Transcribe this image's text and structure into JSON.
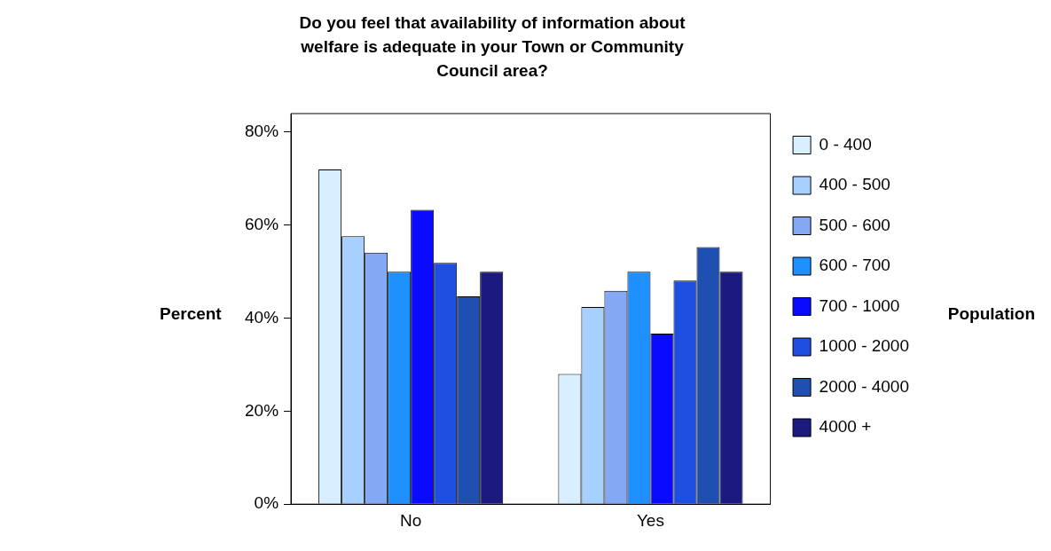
{
  "chart_data": {
    "type": "bar",
    "title": "Do you feel that availability of information about welfare is adequate in your Town or Community Council area?",
    "ylabel": "Percent",
    "legend_title": "Population",
    "categories": [
      "No",
      "Yes"
    ],
    "series": [
      {
        "name": "0 - 400",
        "color": "#d9efff",
        "values": [
          72,
          28
        ]
      },
      {
        "name": "400 - 500",
        "color": "#a8d0ff",
        "values": [
          57.6,
          42.4
        ]
      },
      {
        "name": "500 - 600",
        "color": "#85a8f5",
        "values": [
          54.1,
          45.9
        ]
      },
      {
        "name": "600 - 700",
        "color": "#1e90ff",
        "values": [
          50,
          50
        ]
      },
      {
        "name": "700 - 1000",
        "color": "#0a0aff",
        "values": [
          63.3,
          36.7
        ]
      },
      {
        "name": "1000 - 2000",
        "color": "#1f4fe0",
        "values": [
          51.9,
          48.1
        ]
      },
      {
        "name": "2000 - 4000",
        "color": "#1f4fb0",
        "values": [
          44.7,
          55.3
        ]
      },
      {
        "name": "4000 +",
        "color": "#1a1a80",
        "values": [
          50,
          50
        ]
      }
    ],
    "ylim": [
      0,
      84
    ],
    "yticks": [
      {
        "value": 0,
        "label": "0%"
      },
      {
        "value": 20,
        "label": "20%"
      },
      {
        "value": 40,
        "label": "40%"
      },
      {
        "value": 60,
        "label": "60%"
      },
      {
        "value": 80,
        "label": "80%"
      }
    ],
    "grid": false,
    "legend": "right"
  }
}
